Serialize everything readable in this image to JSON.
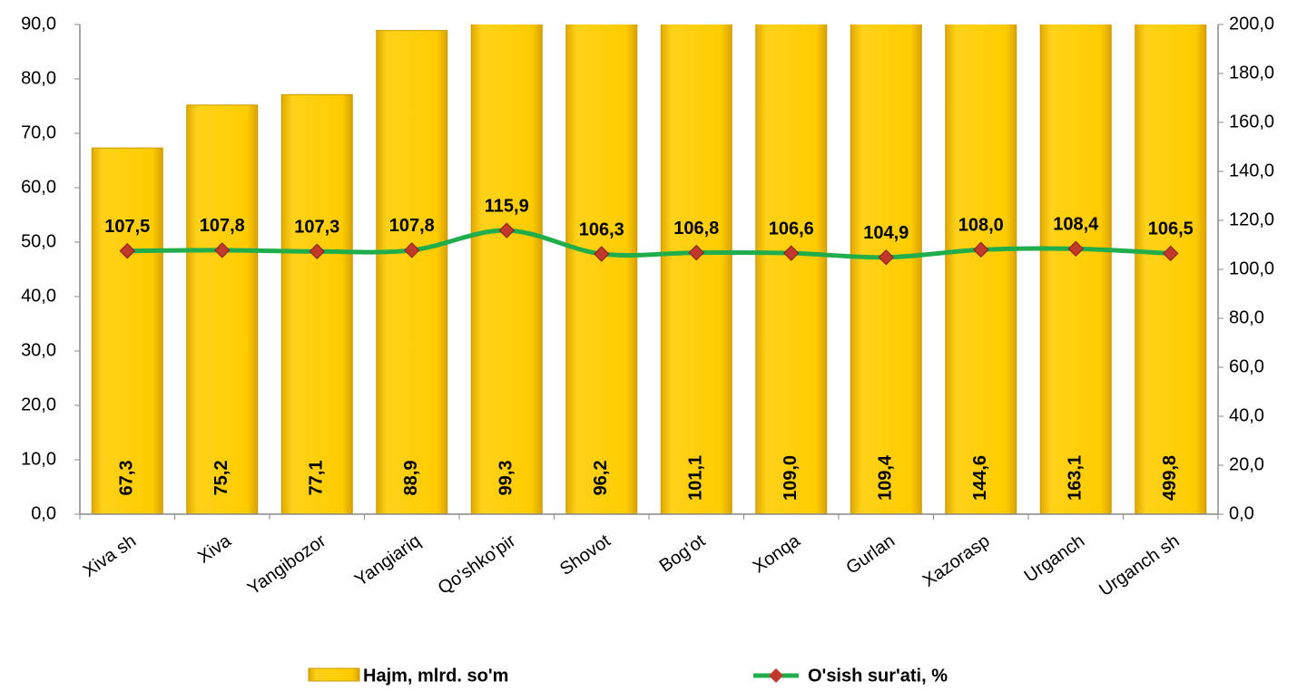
{
  "chart_data": {
    "type": "bar",
    "categories": [
      "Xiva sh",
      "Xiva",
      "Yangibozor",
      "Yangiariq",
      "Qo'shko'pir",
      "Shovot",
      "Bog'ot",
      "Xonqa",
      "Gurlan",
      "Xazorasp",
      "Urganch",
      "Urganch sh"
    ],
    "series": [
      {
        "name": "Hajm, mlrd. so'm",
        "type": "bar",
        "color": "#ffcc00",
        "values": [
          67.3,
          75.2,
          77.1,
          88.9,
          99.3,
          96.2,
          101.1,
          109.0,
          109.4,
          144.6,
          163.1,
          499.8
        ],
        "value_labels": [
          "67,3",
          "75,2",
          "77,1",
          "88,9",
          "99,3",
          "96,2",
          "101,1",
          "109,0",
          "109,4",
          "144,6",
          "163,1",
          "499,8"
        ]
      },
      {
        "name": "O'sish sur'ati, %",
        "type": "line",
        "axis": "y2",
        "color": "#1fae4b",
        "marker_color": "#c0392b",
        "values": [
          107.5,
          107.8,
          107.3,
          107.8,
          115.9,
          106.3,
          106.8,
          106.6,
          104.9,
          108.0,
          108.4,
          106.5
        ],
        "value_labels": [
          "107,5",
          "107,8",
          "107,3",
          "107,8",
          "115,9",
          "106,3",
          "106,8",
          "106,6",
          "104,9",
          "108,0",
          "108,4",
          "106,5"
        ]
      }
    ],
    "ylim": [
      0,
      90
    ],
    "yticks": [
      {
        "value": 0,
        "label": "0,0"
      },
      {
        "value": 10,
        "label": "10,0"
      },
      {
        "value": 20,
        "label": "20,0"
      },
      {
        "value": 30,
        "label": "30,0"
      },
      {
        "value": 40,
        "label": "40,0"
      },
      {
        "value": 50,
        "label": "50,0"
      },
      {
        "value": 60,
        "label": "60,0"
      },
      {
        "value": 70,
        "label": "70,0"
      },
      {
        "value": 80,
        "label": "80,0"
      },
      {
        "value": 90,
        "label": "90,0"
      }
    ],
    "y2lim": [
      0,
      200
    ],
    "y2ticks": [
      {
        "value": 0,
        "label": "0,0"
      },
      {
        "value": 20,
        "label": "20,0"
      },
      {
        "value": 40,
        "label": "40,0"
      },
      {
        "value": 60,
        "label": "60,0"
      },
      {
        "value": 80,
        "label": "80,0"
      },
      {
        "value": 100,
        "label": "100,0"
      },
      {
        "value": 120,
        "label": "120,0"
      },
      {
        "value": 140,
        "label": "140,0"
      },
      {
        "value": 160,
        "label": "160,0"
      },
      {
        "value": 180,
        "label": "180,0"
      },
      {
        "value": 200,
        "label": "200,0"
      }
    ],
    "grid": false,
    "legend": "bottom"
  }
}
